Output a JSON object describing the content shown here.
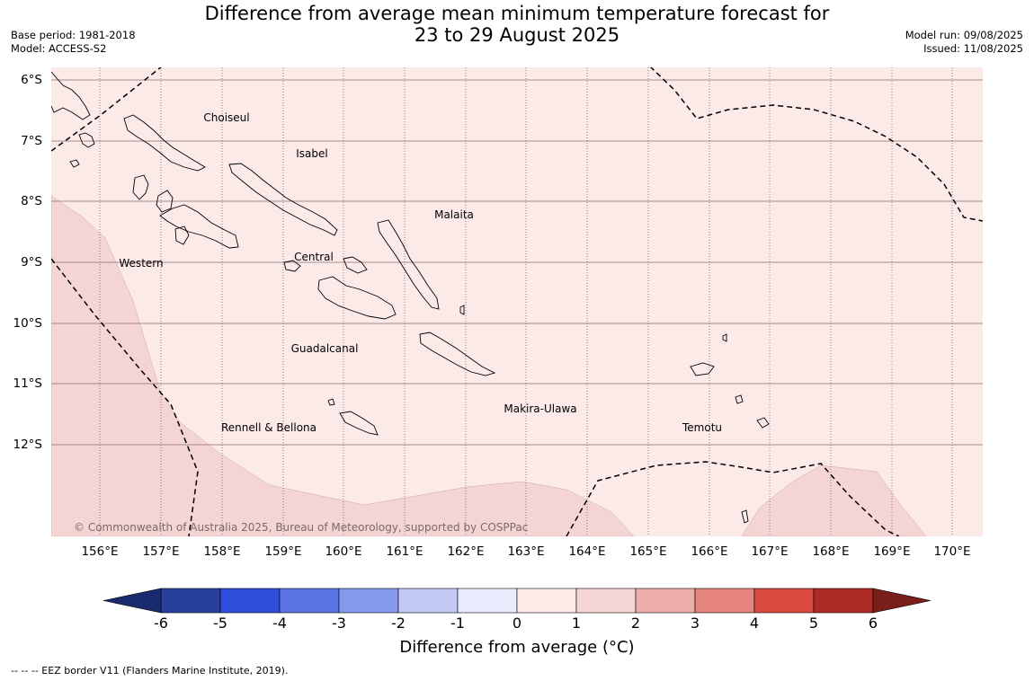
{
  "title_line1": "Difference from average mean minimum temperature forecast for",
  "title_line2": "23 to 29 August 2025",
  "meta_left": {
    "base_period": "Base period: 1981-2018",
    "model": "Model: ACCESS-S2"
  },
  "meta_right": {
    "model_run": "Model run: 09/08/2025",
    "issued": "Issued: 11/08/2025"
  },
  "longitude_labels": [
    "156°E",
    "157°E",
    "158°E",
    "159°E",
    "160°E",
    "161°E",
    "162°E",
    "163°E",
    "164°E",
    "165°E",
    "166°E",
    "167°E",
    "168°E",
    "169°E",
    "170°E"
  ],
  "latitude_labels": [
    "6°S",
    "7°S",
    "8°S",
    "9°S",
    "10°S",
    "11°S",
    "12°S"
  ],
  "regions": [
    "Choiseul",
    "Isabel",
    "Malaita",
    "Western",
    "Central",
    "Guadalcanal",
    "Makira-Ulawa",
    "Rennell & Bellona",
    "Temotu"
  ],
  "copyright": "© Commonwealth of Australia 2025, Bureau of Meteorology, supported by COSPPac",
  "colorbar": {
    "ticks": [
      "-6",
      "-5",
      "-4",
      "-3",
      "-2",
      "-1",
      "0",
      "1",
      "2",
      "3",
      "4",
      "5",
      "6"
    ],
    "label": "Difference from average (°C)",
    "colors": [
      "#283f9e",
      "#2e4fdb",
      "#5b74e4",
      "#8599ec",
      "#c1c8f4",
      "#e8ebfb",
      "#fceae9",
      "#f5d5d3",
      "#edadaa",
      "#e6847e",
      "#db4a40",
      "#ad2a24"
    ],
    "under_color": "#1a2a6e",
    "over_color": "#7a1e1a"
  },
  "field_colors": {
    "zero_to_one": "#fceae9",
    "one_to_two": "#f5d5d3"
  },
  "footer": "--  --  -- EEZ border V11 (Flanders Marine Institute, 2019)."
}
